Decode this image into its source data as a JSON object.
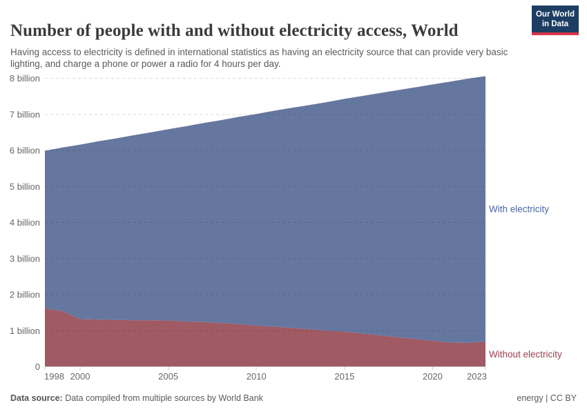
{
  "header": {
    "title": "Number of people with and without electricity access, World",
    "subtitle": "Having access to electricity is defined in international statistics as having an electricity source that can provide very basic lighting, and charge a phone or power a radio for 4 hours per day.",
    "logo": {
      "line1": "Our World",
      "line2": "in Data",
      "bg_color": "#1d3d63",
      "stripe_color": "#d8354a"
    }
  },
  "footer": {
    "source_label": "Data source:",
    "source_text": " Data compiled from multiple sources by World Bank",
    "license": "energy | CC BY"
  },
  "chart_data": {
    "type": "area",
    "stacked": true,
    "title": "Number of people with and without electricity access, World",
    "unit": "billion people",
    "x": [
      1998,
      1999,
      2000,
      2001,
      2002,
      2003,
      2004,
      2005,
      2006,
      2007,
      2008,
      2009,
      2010,
      2011,
      2012,
      2013,
      2014,
      2015,
      2016,
      2017,
      2018,
      2019,
      2020,
      2021,
      2022,
      2023
    ],
    "series": [
      {
        "name": "Without electricity",
        "area_color": "#a05a63",
        "label_color": "#993f50",
        "values": [
          1.62,
          1.54,
          1.32,
          1.31,
          1.3,
          1.29,
          1.29,
          1.28,
          1.26,
          1.24,
          1.21,
          1.18,
          1.14,
          1.11,
          1.08,
          1.04,
          1.0,
          0.97,
          0.92,
          0.87,
          0.82,
          0.77,
          0.72,
          0.67,
          0.66,
          0.69
        ]
      },
      {
        "name": "With electricity",
        "area_color": "#66779f",
        "label_color": "#4a65a3",
        "values": [
          4.37,
          4.54,
          4.84,
          4.94,
          5.03,
          5.13,
          5.21,
          5.31,
          5.41,
          5.52,
          5.63,
          5.75,
          5.87,
          5.99,
          6.1,
          6.22,
          6.34,
          6.46,
          6.59,
          6.72,
          6.85,
          6.98,
          7.11,
          7.24,
          7.33,
          7.37
        ]
      }
    ],
    "xticks": [
      1998,
      2000,
      2005,
      2010,
      2015,
      2020,
      2023
    ],
    "yticks": [
      {
        "value": 0,
        "label": "0"
      },
      {
        "value": 1,
        "label": "1 billion"
      },
      {
        "value": 2,
        "label": "2 billion"
      },
      {
        "value": 3,
        "label": "3 billion"
      },
      {
        "value": 4,
        "label": "4 billion"
      },
      {
        "value": 5,
        "label": "5 billion"
      },
      {
        "value": 6,
        "label": "6 billion"
      },
      {
        "value": 7,
        "label": "7 billion"
      },
      {
        "value": 8,
        "label": "8 billion"
      }
    ],
    "ylim": [
      0,
      8
    ],
    "grid": "dashed-horizontal",
    "axis_color": "#cccccc",
    "tick_label_color": "#666666",
    "legend_position": "right-edge-labels"
  }
}
